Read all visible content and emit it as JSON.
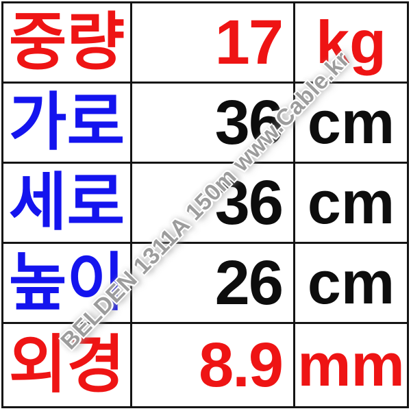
{
  "watermark": {
    "text": "BELDEN 1311A 150m www.Cable.kr"
  },
  "colors": {
    "red": "#ee1414",
    "blue": "#1414ee",
    "black": "#0d0d0d"
  },
  "table": {
    "rows": [
      {
        "label": "중량",
        "value": "17",
        "unit": "kg",
        "label_color": "red",
        "value_color": "red"
      },
      {
        "label": "가로",
        "value": "36",
        "unit": "cm",
        "label_color": "blue",
        "value_color": "black"
      },
      {
        "label": "세로",
        "value": "36",
        "unit": "cm",
        "label_color": "blue",
        "value_color": "black"
      },
      {
        "label": "높이",
        "value": "26",
        "unit": "cm",
        "label_color": "blue",
        "value_color": "black"
      },
      {
        "label": "외경",
        "value": "8.9",
        "unit": "mm",
        "label_color": "red",
        "value_color": "red"
      }
    ]
  }
}
